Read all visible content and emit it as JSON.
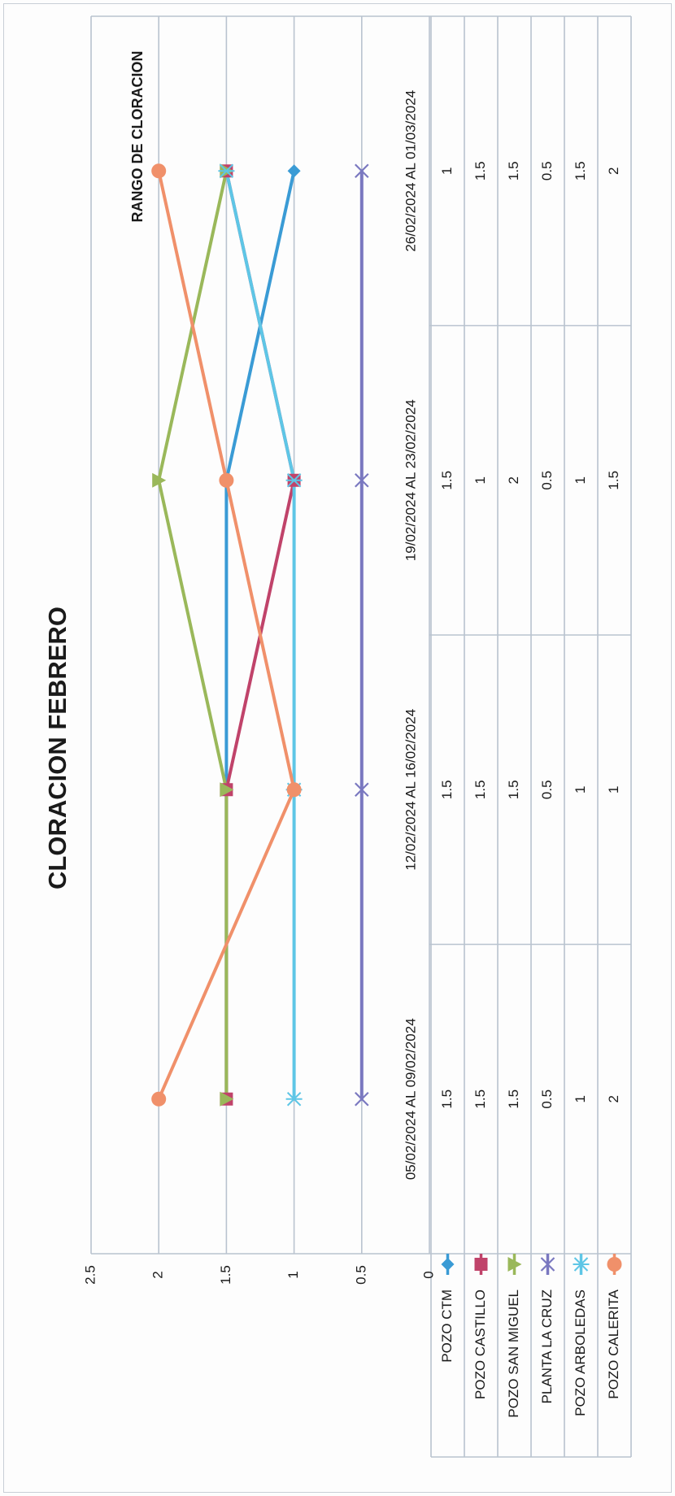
{
  "chart_data": {
    "type": "line",
    "title": "CLORACION FEBRERO",
    "xlabel": "",
    "ylabel": "RANGO DE CLORACION",
    "ylim": [
      0,
      2.5
    ],
    "y_ticks": [
      "0",
      "0.5",
      "1",
      "1.5",
      "2",
      "2.5"
    ],
    "grid": true,
    "legend": "data-table",
    "categories": [
      "05/02/2024 AL 09/02/2024",
      "12/02/2024 AL 16/02/2024",
      "19/02/2024 AL 23/02/2024",
      "26/02/2024 AL 01/03/2024"
    ],
    "series": [
      {
        "name": "POZO CTM",
        "values": [
          1.5,
          1.5,
          1.5,
          1
        ],
        "labels": [
          "1.5",
          "1.5",
          "1.5",
          "1"
        ],
        "color": "#3a9bd5",
        "marker": "diamond"
      },
      {
        "name": "POZO CASTILLO",
        "values": [
          1.5,
          1.5,
          1,
          1.5
        ],
        "labels": [
          "1.5",
          "1.5",
          "1",
          "1.5"
        ],
        "color": "#c0436a",
        "marker": "square"
      },
      {
        "name": "POZO SAN MIGUEL",
        "values": [
          1.5,
          1.5,
          2,
          1.5
        ],
        "labels": [
          "1.5",
          "1.5",
          "2",
          "1.5"
        ],
        "color": "#9ab85a",
        "marker": "triangle"
      },
      {
        "name": "PLANTA LA CRUZ",
        "values": [
          0.5,
          0.5,
          0.5,
          0.5
        ],
        "labels": [
          "0.5",
          "0.5",
          "0.5",
          "0.5"
        ],
        "color": "#7a78c0",
        "marker": "x"
      },
      {
        "name": "POZO ARBOLEDAS",
        "values": [
          1,
          1,
          1,
          1.5
        ],
        "labels": [
          "1",
          "1",
          "1",
          "1.5"
        ],
        "color": "#5ec6e6",
        "marker": "star"
      },
      {
        "name": "POZO CALERITA",
        "values": [
          2,
          1,
          1.5,
          2
        ],
        "labels": [
          "2",
          "1",
          "1.5",
          "2"
        ],
        "color": "#f0906a",
        "marker": "circle"
      }
    ]
  }
}
